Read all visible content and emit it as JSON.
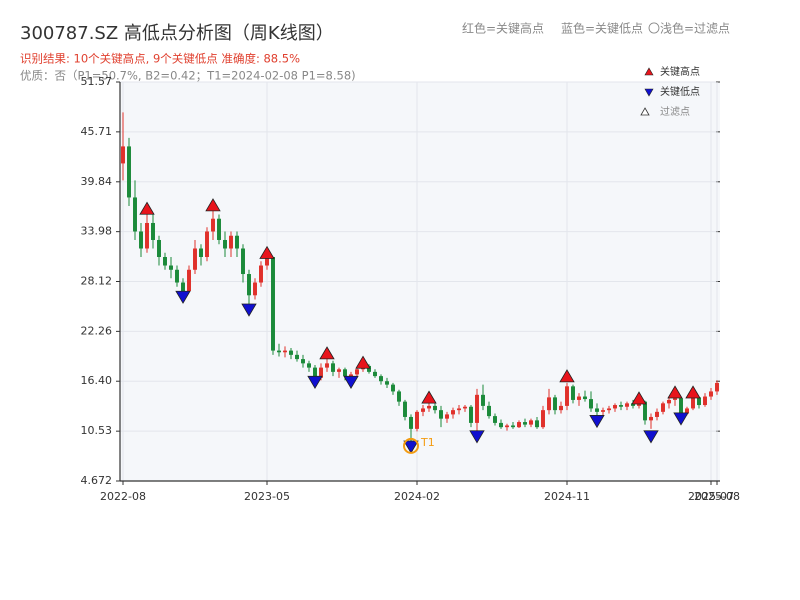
{
  "chart_data": {
    "type": "candlestick",
    "title": "300787.SZ 高低点分析图（周K线图）",
    "subtitle": "识别结果: 10个关键高点, 9个关键低点  准确度: 88.5%",
    "subtitle2": "优质：否（P1=50.7%, B2=0.42；T1=2024-02-08 P1=8.58)",
    "header_legend": [
      "红色=关键高点",
      "蓝色=关键低点",
      "〇浅色=过滤点"
    ],
    "filtered_legend": "过滤点",
    "annotation": "T1",
    "annotation_color": "#f39c12",
    "up_color": "#e0302b",
    "down_color": "#1b8a3a",
    "grid": true,
    "ylim": [
      4.672,
      51.57
    ],
    "yticks": [
      4.672,
      10.53,
      {
        "value": 16.4,
        "label": "16.40"
      },
      22.26,
      28.12,
      33.98,
      39.84,
      45.71,
      51.57
    ],
    "categories": [
      "2022-08",
      null,
      null,
      null,
      null,
      null,
      null,
      null,
      null,
      null,
      null,
      null,
      null,
      null,
      null,
      null,
      null,
      null,
      null,
      null,
      null,
      null,
      null,
      null,
      "2023-05",
      null,
      null,
      null,
      null,
      null,
      null,
      null,
      null,
      null,
      null,
      null,
      null,
      null,
      null,
      null,
      null,
      null,
      null,
      null,
      null,
      null,
      null,
      null,
      null,
      "2024-02",
      null,
      null,
      null,
      null,
      null,
      null,
      null,
      null,
      null,
      null,
      null,
      null,
      null,
      null,
      null,
      null,
      null,
      null,
      null,
      null,
      null,
      null,
      null,
      null,
      "2024-11",
      null,
      null,
      null,
      null,
      null,
      null,
      null,
      null,
      null,
      null,
      null,
      null,
      null,
      null,
      null,
      null,
      null,
      null,
      null,
      null,
      null,
      null,
      null,
      "2025-07",
      "2025-08"
    ],
    "ohlc": [
      [
        42,
        48,
        40,
        44
      ],
      [
        44,
        45,
        37,
        38
      ],
      [
        38,
        40,
        33,
        34
      ],
      [
        34,
        35,
        31,
        32
      ],
      [
        32,
        36,
        31.5,
        35
      ],
      [
        35,
        36,
        32,
        33
      ],
      [
        33,
        33.5,
        30,
        31
      ],
      [
        31,
        31.5,
        29.5,
        30
      ],
      [
        30,
        31,
        28.5,
        29.5
      ],
      [
        29.5,
        30,
        27.5,
        28
      ],
      [
        28,
        28.5,
        26.3,
        27
      ],
      [
        27,
        30,
        26.8,
        29.5
      ],
      [
        29.5,
        33,
        29,
        32
      ],
      [
        32,
        32.5,
        30,
        31
      ],
      [
        31,
        34.5,
        30.5,
        34
      ],
      [
        34,
        36.5,
        33,
        35.5
      ],
      [
        35.5,
        36,
        32.5,
        33
      ],
      [
        33,
        34,
        31,
        32
      ],
      [
        32,
        34,
        31,
        33.5
      ],
      [
        33.5,
        34,
        31,
        32
      ],
      [
        32,
        32.5,
        28,
        29
      ],
      [
        29,
        29.5,
        25,
        26.5
      ],
      [
        26.5,
        28.5,
        26,
        28
      ],
      [
        28,
        30.5,
        27.5,
        30
      ],
      [
        30,
        31.2,
        29.5,
        31
      ],
      [
        31,
        31,
        19.5,
        20
      ],
      [
        20,
        20.8,
        19.3,
        19.8
      ],
      [
        19.8,
        20.5,
        19.2,
        20
      ],
      [
        20,
        20.3,
        19,
        19.5
      ],
      [
        19.5,
        20,
        18.7,
        19
      ],
      [
        19,
        19.5,
        18,
        18.5
      ],
      [
        18.5,
        18.8,
        17.5,
        18
      ],
      [
        18,
        18.3,
        16.3,
        16.8
      ],
      [
        16.8,
        18.5,
        16.5,
        18
      ],
      [
        18,
        19.3,
        17.5,
        18.5
      ],
      [
        18.5,
        18.8,
        17,
        17.5
      ],
      [
        17.5,
        18,
        16.8,
        17.8
      ],
      [
        17.8,
        18,
        16.5,
        17
      ],
      [
        17,
        17.5,
        16.4,
        17.2
      ],
      [
        17.2,
        18,
        16.8,
        17.8
      ],
      [
        17.8,
        18.6,
        17.5,
        18.2
      ],
      [
        18.2,
        18.4,
        17.3,
        17.5
      ],
      [
        17.5,
        17.8,
        16.8,
        17
      ],
      [
        17,
        17.2,
        16,
        16.4
      ],
      [
        16.4,
        16.8,
        15.6,
        16
      ],
      [
        16,
        16.2,
        14.8,
        15.2
      ],
      [
        15.2,
        15.4,
        13.5,
        14
      ],
      [
        14,
        14.2,
        11.8,
        12.2
      ],
      [
        12.2,
        12.5,
        8.9,
        10.8
      ],
      [
        10.8,
        13,
        10.5,
        12.8
      ],
      [
        12.8,
        13.6,
        12.3,
        13.2
      ],
      [
        13.2,
        14.2,
        12.8,
        13.5
      ],
      [
        13.5,
        13.8,
        12.6,
        13
      ],
      [
        13,
        13.5,
        11,
        12
      ],
      [
        12,
        12.8,
        11.5,
        12.5
      ],
      [
        12.5,
        13.3,
        12,
        13
      ],
      [
        13,
        13.6,
        12.5,
        13.2
      ],
      [
        13.2,
        13.6,
        12.8,
        13.4
      ],
      [
        13.4,
        13.6,
        11,
        11.5
      ],
      [
        11.5,
        15.5,
        10.6,
        14.8
      ],
      [
        14.8,
        16,
        13,
        13.5
      ],
      [
        13.5,
        14,
        12,
        12.3
      ],
      [
        12.3,
        12.6,
        11.2,
        11.5
      ],
      [
        11.5,
        11.9,
        10.8,
        11
      ],
      [
        11,
        11.4,
        10.6,
        11.2
      ],
      [
        11.2,
        11.6,
        10.8,
        11
      ],
      [
        11,
        11.8,
        10.9,
        11.6
      ],
      [
        11.6,
        12,
        11,
        11.3
      ],
      [
        11.3,
        12,
        11,
        11.8
      ],
      [
        11.8,
        12.2,
        10.8,
        11
      ],
      [
        11,
        13.5,
        10.8,
        13
      ],
      [
        13,
        15.5,
        12.5,
        14.5
      ],
      [
        14.5,
        14.8,
        12.5,
        13
      ],
      [
        13,
        14,
        12.6,
        13.5
      ],
      [
        13.5,
        16.2,
        13,
        15.8
      ],
      [
        15.8,
        16,
        13.8,
        14.2
      ],
      [
        14.2,
        15,
        13.5,
        14.6
      ],
      [
        14.6,
        15.3,
        14,
        14.3
      ],
      [
        14.3,
        15.2,
        12.8,
        13.2
      ],
      [
        13.2,
        13.8,
        12.4,
        12.8
      ],
      [
        12.8,
        13.3,
        12.2,
        13
      ],
      [
        13,
        13.5,
        12.6,
        13.2
      ],
      [
        13.2,
        13.8,
        12.8,
        13.6
      ],
      [
        13.6,
        14,
        13,
        13.4
      ],
      [
        13.4,
        14,
        13,
        13.8
      ],
      [
        13.8,
        14.2,
        13.2,
        13.5
      ],
      [
        13.5,
        14.2,
        13.2,
        14
      ],
      [
        14,
        14.1,
        11.3,
        11.8
      ],
      [
        11.8,
        12.6,
        10.8,
        12.2
      ],
      [
        12.2,
        13.2,
        11.8,
        12.8
      ],
      [
        12.8,
        14,
        12.5,
        13.8
      ],
      [
        13.8,
        14.6,
        13.2,
        14.2
      ],
      [
        14.2,
        14.9,
        13.5,
        14.4
      ],
      [
        14.4,
        14.5,
        12.2,
        12.6
      ],
      [
        12.6,
        13.4,
        12.4,
        13.2
      ],
      [
        13.2,
        14.9,
        13,
        14.5
      ],
      [
        14.5,
        14.6,
        13.2,
        13.6
      ],
      [
        13.6,
        15,
        13.4,
        14.6
      ],
      [
        14.6,
        15.6,
        14.2,
        15.2
      ],
      [
        15.2,
        16.5,
        14.8,
        16.2
      ]
    ],
    "marker_series": [
      {
        "name": "关键高点",
        "color": "#e8141c",
        "shape": "up",
        "values": [
          null,
          null,
          null,
          null,
          36.6,
          null,
          null,
          null,
          null,
          null,
          null,
          null,
          null,
          null,
          null,
          37.0,
          null,
          null,
          null,
          null,
          null,
          null,
          null,
          null,
          31.4,
          null,
          null,
          null,
          null,
          null,
          null,
          null,
          null,
          null,
          19.6,
          null,
          null,
          null,
          null,
          null,
          18.5,
          null,
          null,
          null,
          null,
          null,
          null,
          null,
          null,
          null,
          null,
          14.4,
          null,
          null,
          null,
          null,
          null,
          null,
          null,
          null,
          null,
          null,
          null,
          null,
          null,
          null,
          null,
          null,
          null,
          null,
          null,
          null,
          null,
          null,
          16.9,
          null,
          null,
          null,
          null,
          null,
          null,
          null,
          null,
          null,
          null,
          null,
          14.3,
          null,
          null,
          null,
          null,
          null,
          15.0,
          null,
          null,
          15.0,
          null,
          null,
          null,
          null
        ]
      },
      {
        "name": "关键低点",
        "color": "#1010d0",
        "shape": "down",
        "values": [
          null,
          null,
          null,
          null,
          null,
          null,
          null,
          null,
          null,
          null,
          26.4,
          null,
          null,
          null,
          null,
          null,
          null,
          null,
          null,
          null,
          null,
          24.9,
          null,
          null,
          null,
          null,
          null,
          null,
          null,
          null,
          null,
          null,
          16.4,
          null,
          null,
          null,
          null,
          null,
          16.4,
          null,
          null,
          null,
          null,
          null,
          null,
          null,
          null,
          null,
          8.8,
          null,
          null,
          null,
          null,
          null,
          null,
          null,
          null,
          null,
          null,
          10.0,
          null,
          null,
          null,
          null,
          null,
          null,
          null,
          null,
          null,
          null,
          null,
          null,
          null,
          null,
          null,
          null,
          null,
          null,
          null,
          11.8,
          null,
          null,
          null,
          null,
          null,
          null,
          null,
          null,
          10.0,
          null,
          null,
          null,
          null,
          12.1,
          null,
          null,
          null,
          null,
          null,
          null
        ]
      }
    ]
  }
}
